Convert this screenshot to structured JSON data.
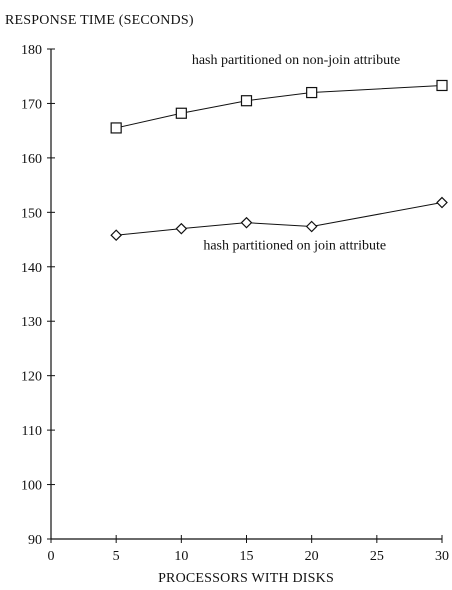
{
  "chart_data": {
    "type": "line",
    "title": "",
    "ylabel": "RESPONSE TIME (SECONDS)",
    "xlabel": "PROCESSORS WITH DISKS",
    "xlim": [
      0,
      30
    ],
    "ylim": [
      90,
      180
    ],
    "xticks": [
      0,
      5,
      10,
      15,
      20,
      25,
      30
    ],
    "yticks": [
      90,
      100,
      110,
      120,
      130,
      140,
      150,
      160,
      170,
      180
    ],
    "grid": false,
    "series": [
      {
        "marker": "square",
        "x": [
          5,
          10,
          15,
          20,
          30
        ],
        "values": [
          165.5,
          168.2,
          170.5,
          172.0,
          173.3
        ]
      },
      {
        "marker": "diamond",
        "x": [
          5,
          10,
          15,
          20,
          30
        ],
        "values": [
          145.8,
          147.0,
          148.1,
          147.4,
          151.8
        ]
      }
    ],
    "annotations": [
      {
        "text": "hash partitioned on non-join attribute",
        "x": 18.8,
        "y": 177.2
      },
      {
        "text": "hash partitioned on join attribute",
        "x": 18.7,
        "y": 143.2
      }
    ]
  }
}
